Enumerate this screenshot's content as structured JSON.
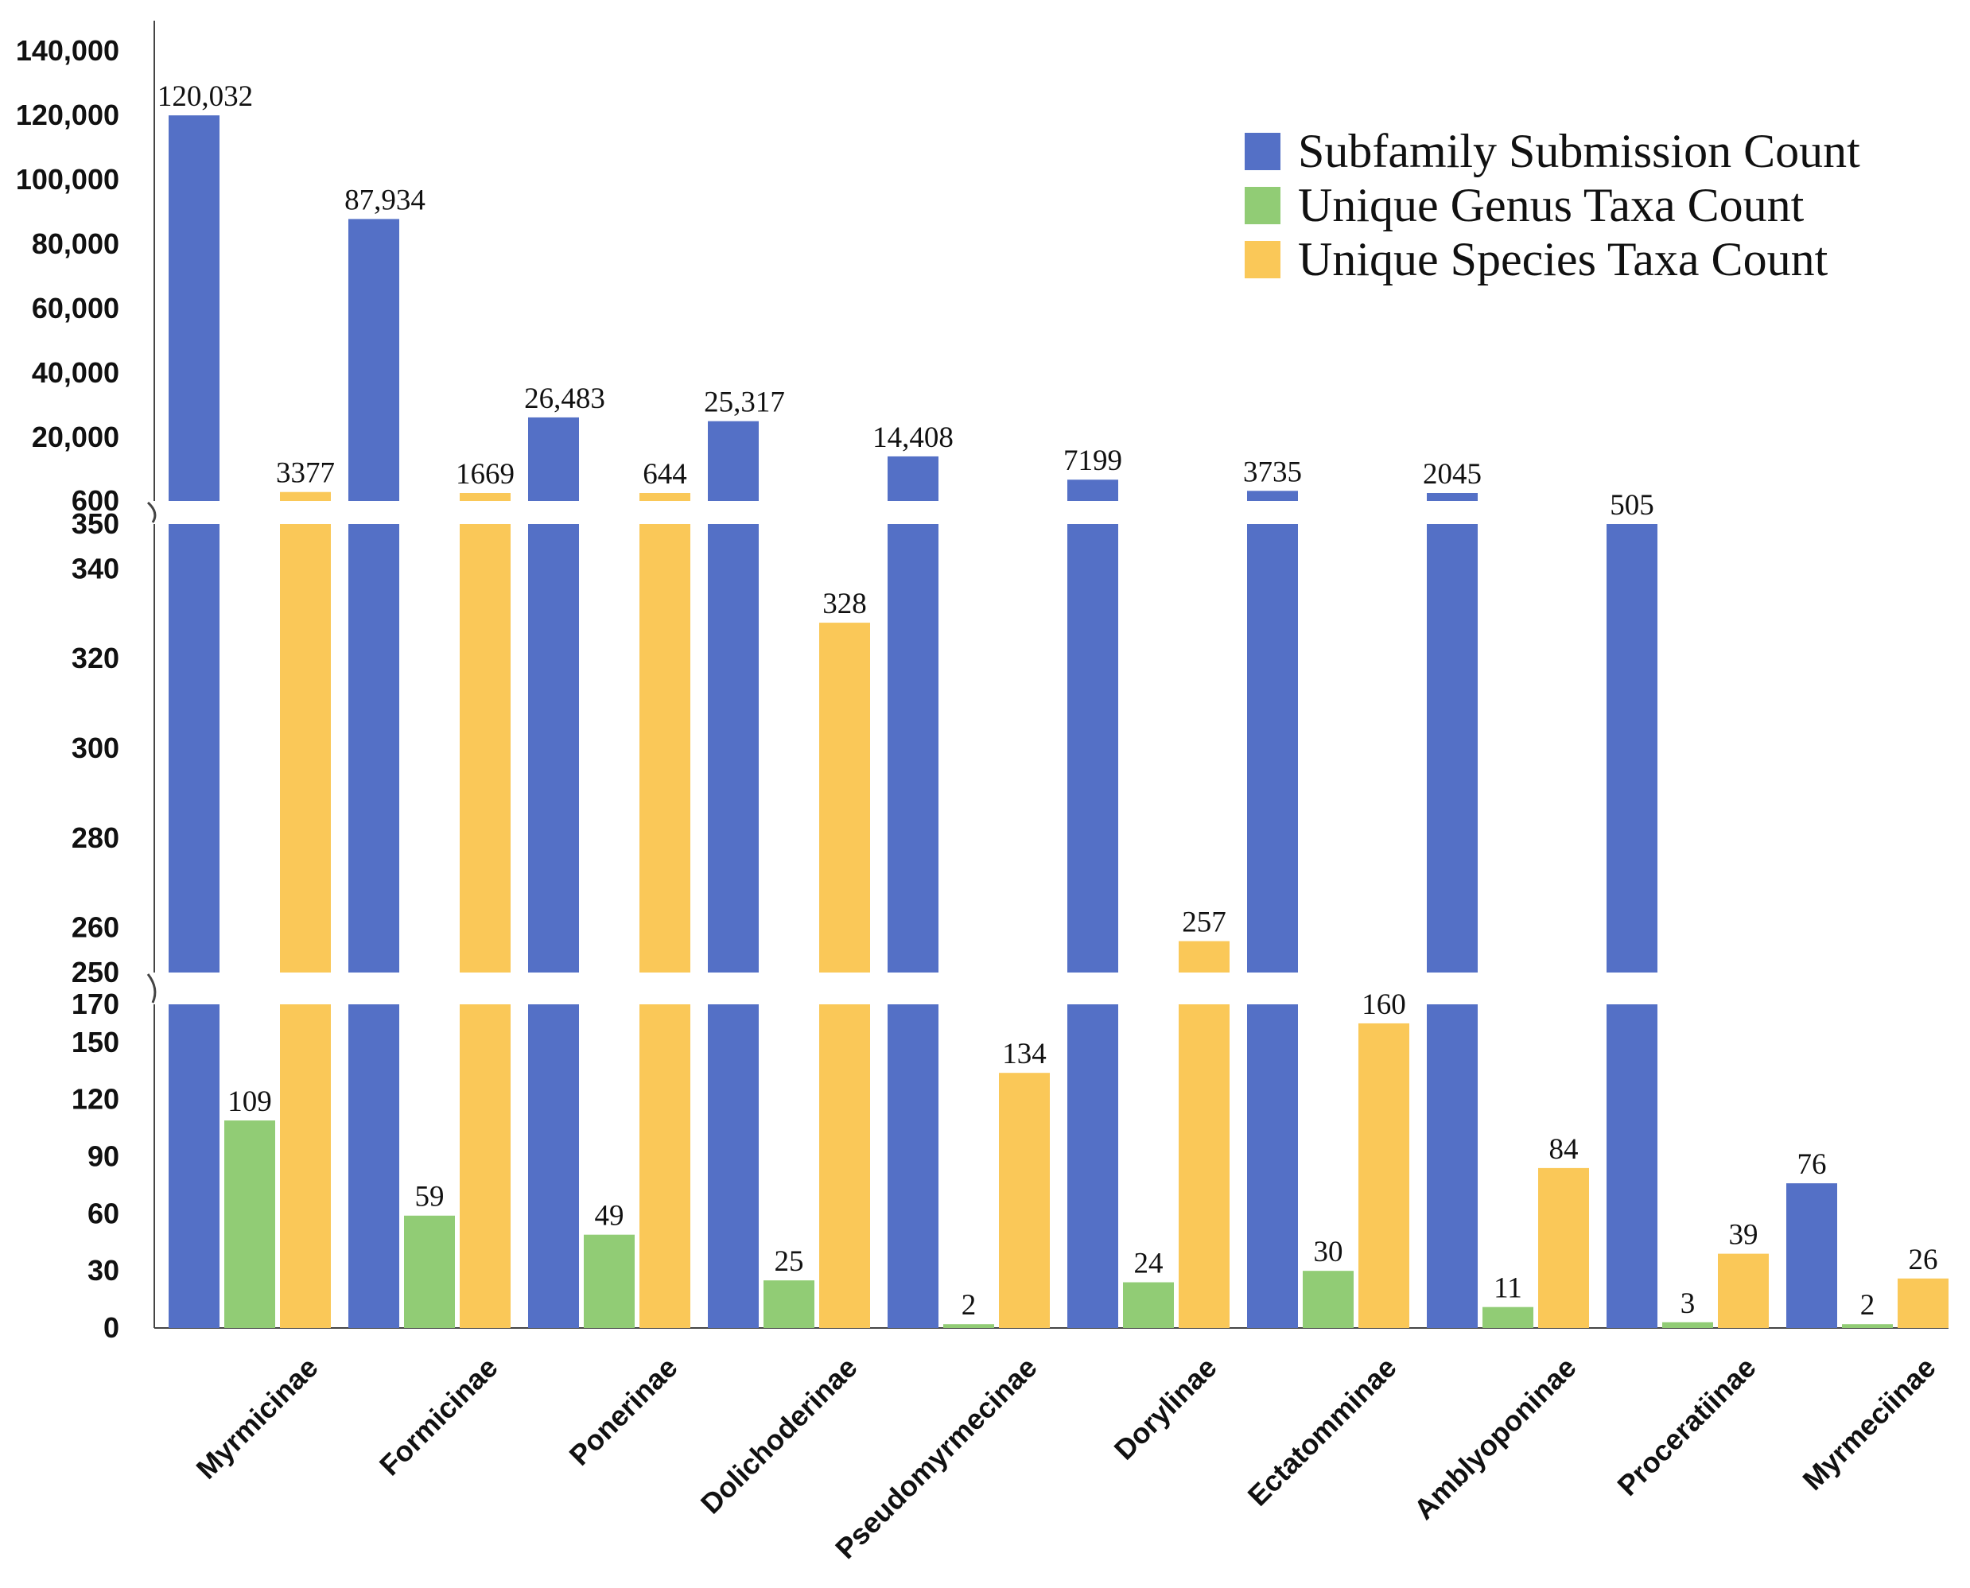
{
  "chart_data": {
    "type": "bar",
    "title": "",
    "xlabel": "",
    "ylabel": "",
    "axis_break": true,
    "y_segments": [
      {
        "range": [
          0,
          170
        ],
        "ticks": [
          0,
          30,
          60,
          90,
          120,
          150,
          170
        ]
      },
      {
        "range": [
          250,
          350
        ],
        "ticks": [
          250,
          260,
          280,
          300,
          320,
          340,
          350
        ]
      },
      {
        "range": [
          600,
          140000
        ],
        "tick_labels": [
          "600",
          "20,000",
          "40,000",
          "60,000",
          "80,000",
          "100,000",
          "120,000",
          "140,000"
        ]
      }
    ],
    "categories": [
      "Myrmicinae",
      "Formicinae",
      "Ponerinae",
      "Dolichoderinae",
      "Pseudomyrmecinae",
      "Dorylinae",
      "Ectatomminae",
      "Amblyoponinae",
      "Proceratiinae",
      "Myrmeciinae"
    ],
    "series": [
      {
        "name": "Subfamily Submission Count",
        "color": "#5470c6",
        "values": [
          120032,
          87934,
          26483,
          25317,
          14408,
          7199,
          3735,
          2045,
          505,
          76
        ],
        "labels": [
          "120,032",
          "87,934",
          "26,483",
          "25,317",
          "14,408",
          "7199",
          "3735",
          "2045",
          "505",
          "76"
        ]
      },
      {
        "name": "Unique Genus Taxa Count",
        "color": "#91cc75",
        "values": [
          109,
          59,
          49,
          25,
          2,
          24,
          30,
          11,
          3,
          2
        ],
        "labels": [
          "109",
          "59",
          "49",
          "25",
          "2",
          "24",
          "30",
          "11",
          "3",
          "2"
        ]
      },
      {
        "name": "Unique Species Taxa Count",
        "color": "#fac858",
        "values": [
          3377,
          1669,
          644,
          328,
          134,
          257,
          160,
          84,
          39,
          26
        ],
        "labels": [
          "3377",
          "1669",
          "644",
          "328",
          "134",
          "257",
          "160",
          "84",
          "39",
          "26"
        ]
      }
    ],
    "legend_position": "top-right"
  }
}
